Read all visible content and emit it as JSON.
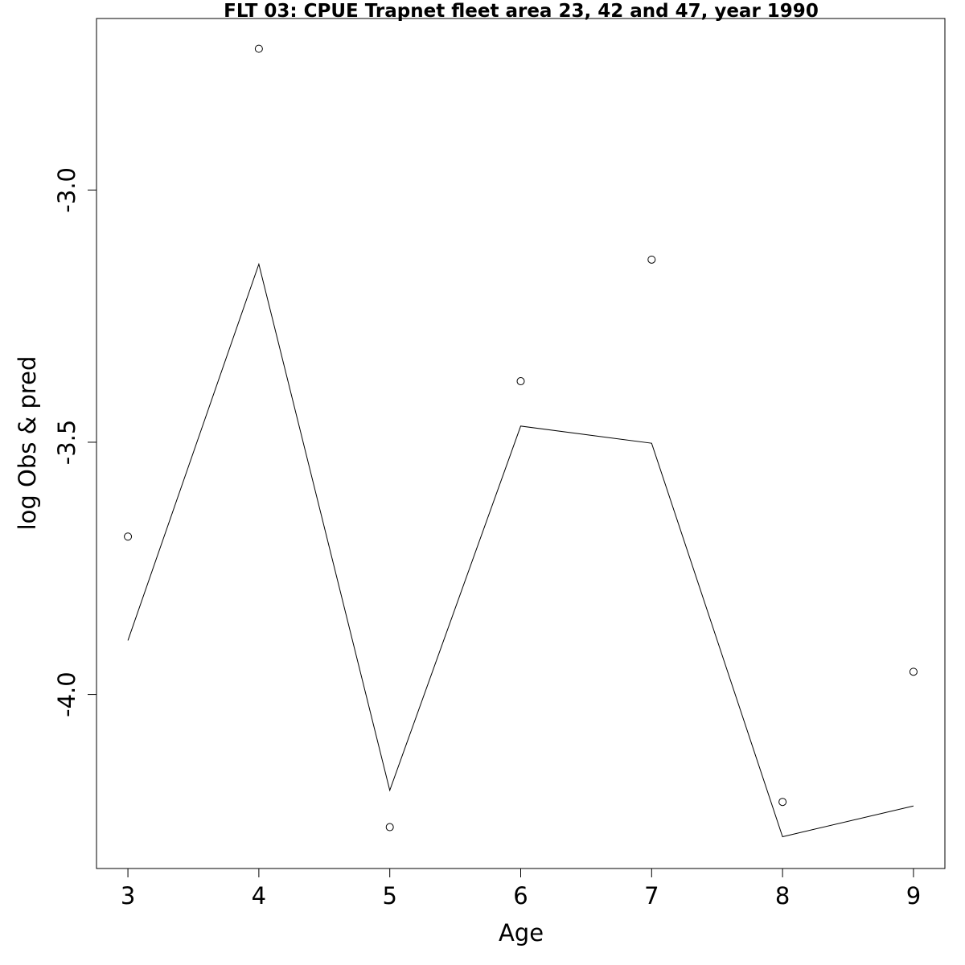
{
  "chart_data": {
    "type": "line",
    "title": "FLT 03: CPUE Trapnet fleet area 23, 42 and 47, year 1990",
    "xlabel": "Age",
    "ylabel": "log Obs & pred",
    "x": [
      3,
      4,
      5,
      6,
      7,
      8,
      9
    ],
    "xlim": [
      2.76,
      9.24
    ],
    "ylim": [
      -4.345,
      -2.66
    ],
    "x_ticks": [
      "3",
      "4",
      "5",
      "6",
      "7",
      "8",
      "9"
    ],
    "y_ticks": [
      "-3.0",
      "-3.5",
      "-4.0"
    ],
    "y_tick_values": [
      -3.0,
      -3.5,
      -4.0
    ],
    "series": [
      {
        "kind": "points",
        "values": [
          -3.687,
          -2.72,
          -4.263,
          -3.379,
          -3.138,
          -4.213,
          -3.955
        ]
      },
      {
        "kind": "line",
        "values": [
          -3.893,
          -3.147,
          -4.19,
          -3.468,
          -3.502,
          -4.282,
          -4.221
        ]
      }
    ],
    "grid": false,
    "legend": "none",
    "colors": {
      "line": "#000000",
      "points": "#000000",
      "frame": "#000000",
      "background": "#ffffff"
    }
  }
}
